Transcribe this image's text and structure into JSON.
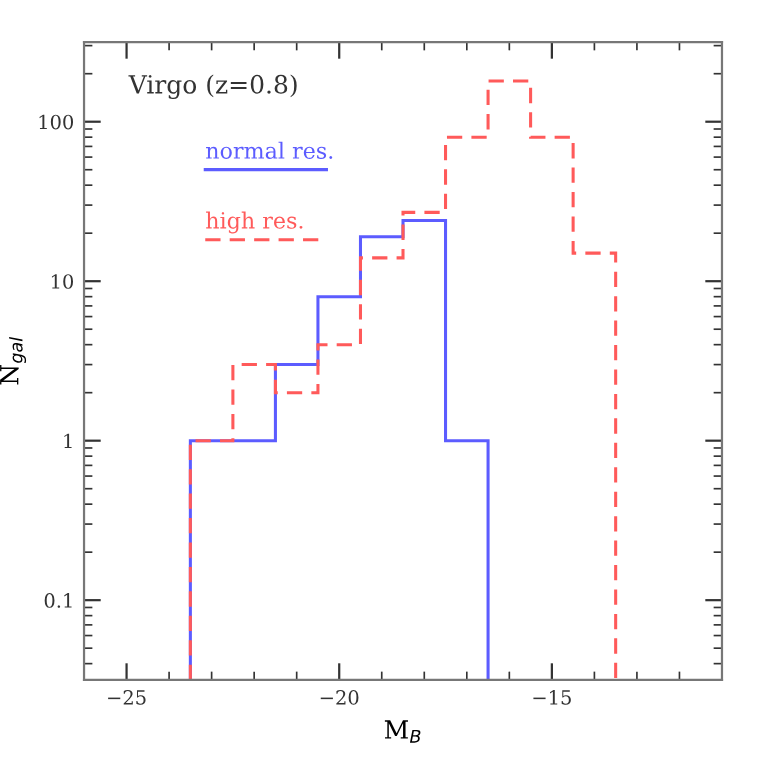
{
  "chart_data": {
    "type": "histogram",
    "annotations": [
      "Virgo (z=0.8)"
    ],
    "xlabel": "M$_{B}$",
    "ylabel": "N$_{gal}$",
    "bins": [
      -23.5,
      -22.5,
      -21.5,
      -20.5,
      -19.5,
      -18.5,
      -17.5,
      -16.5,
      -15.5,
      -14.5,
      -13.5
    ],
    "series": [
      {
        "name": "normal res.",
        "color": "#5c5cff",
        "line_style": "solid",
        "bins": [
          -23.5,
          -22.5,
          -21.5,
          -20.5,
          -19.5,
          -18.5,
          -17.5,
          -16.5
        ],
        "values": [
          1,
          1,
          3,
          8,
          19,
          24,
          1
        ]
      },
      {
        "name": "high res.",
        "color": "#ff5a5a",
        "line_style": "dashed",
        "values": [
          1,
          3,
          2,
          4,
          14,
          27,
          80,
          180,
          80,
          15
        ]
      }
    ],
    "log": true,
    "xlim": [
      -26,
      -11
    ],
    "ylim": [
      0.0316,
      316
    ],
    "xticks": [
      {
        "value": -25,
        "label": "−25"
      },
      {
        "value": -20,
        "label": "−20"
      },
      {
        "value": -15,
        "label": "−15"
      }
    ],
    "yticks": [
      0.1,
      1,
      10,
      100
    ],
    "legend": "top left",
    "grid": false
  }
}
